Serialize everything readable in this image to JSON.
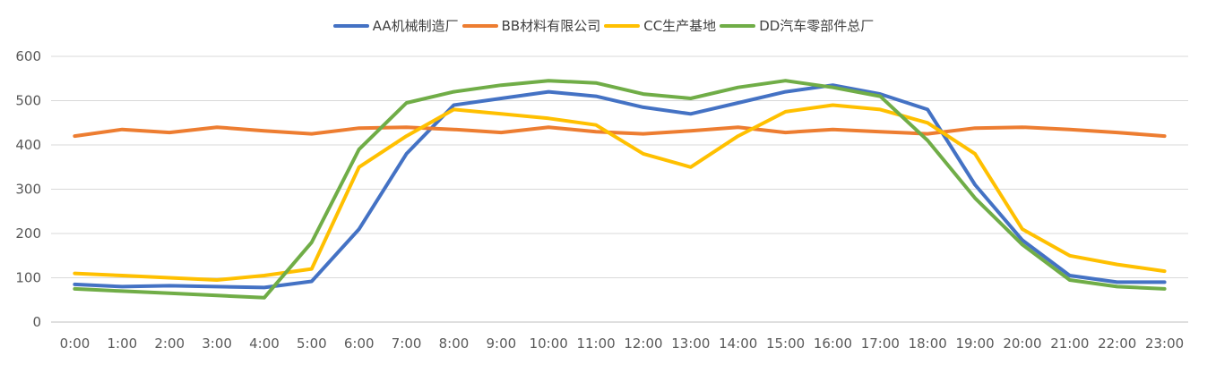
{
  "chart_data": {
    "type": "line",
    "categories": [
      "0:00",
      "1:00",
      "2:00",
      "3:00",
      "4:00",
      "5:00",
      "6:00",
      "7:00",
      "8:00",
      "9:00",
      "10:00",
      "11:00",
      "12:00",
      "13:00",
      "14:00",
      "15:00",
      "16:00",
      "17:00",
      "18:00",
      "19:00",
      "20:00",
      "21:00",
      "22:00",
      "23:00"
    ],
    "yticks": [
      "0",
      "100",
      "200",
      "300",
      "400",
      "500",
      "600"
    ],
    "ylim": [
      0,
      600
    ],
    "grid": true,
    "legend_position": "top",
    "series": [
      {
        "name": "AA机械制造厂",
        "color": "#4472C4",
        "values": [
          85,
          80,
          82,
          80,
          78,
          92,
          210,
          380,
          490,
          505,
          520,
          510,
          485,
          470,
          495,
          520,
          535,
          515,
          480,
          310,
          185,
          105,
          90,
          90
        ]
      },
      {
        "name": "BB材料有限公司",
        "color": "#ED7D31",
        "values": [
          420,
          435,
          428,
          440,
          432,
          425,
          438,
          440,
          435,
          428,
          440,
          430,
          425,
          432,
          440,
          428,
          435,
          430,
          425,
          438,
          440,
          435,
          428,
          420
        ]
      },
      {
        "name": "CC生产基地",
        "color": "#FFC000",
        "values": [
          110,
          105,
          100,
          95,
          105,
          120,
          350,
          420,
          480,
          470,
          460,
          445,
          380,
          350,
          420,
          475,
          490,
          480,
          450,
          380,
          210,
          150,
          130,
          115
        ]
      },
      {
        "name": "DD汽车零部件总厂",
        "color": "#70AD47",
        "values": [
          75,
          70,
          65,
          60,
          55,
          180,
          390,
          495,
          520,
          535,
          545,
          540,
          515,
          505,
          530,
          545,
          530,
          510,
          410,
          280,
          175,
          95,
          80,
          75
        ]
      }
    ]
  }
}
